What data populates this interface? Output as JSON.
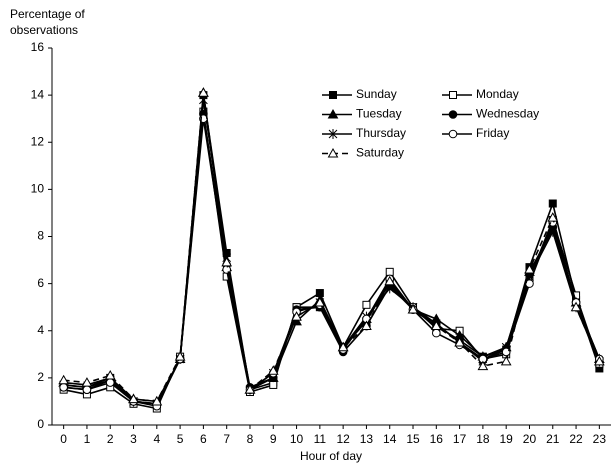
{
  "chart_data": {
    "type": "line",
    "y_label": "Percentage of observations",
    "x_label": "Hour of day",
    "x": [
      0,
      1,
      2,
      3,
      4,
      5,
      6,
      7,
      8,
      9,
      10,
      11,
      12,
      13,
      14,
      15,
      16,
      17,
      18,
      19,
      20,
      21,
      22,
      23
    ],
    "xlim": [
      -0.5,
      23.5
    ],
    "xticks": [
      0,
      1,
      2,
      3,
      4,
      5,
      6,
      7,
      8,
      9,
      10,
      11,
      12,
      13,
      14,
      15,
      16,
      17,
      18,
      19,
      20,
      21,
      22,
      23
    ],
    "ylim": [
      0,
      16
    ],
    "yticks": [
      0,
      2,
      4,
      6,
      8,
      10,
      12,
      14,
      16
    ],
    "grid": false,
    "legend": "upper-right",
    "series": [
      {
        "name": "Sunday",
        "color": "#000000",
        "marker": "square",
        "filled": true,
        "dashed": false,
        "values": [
          1.7,
          1.6,
          2.0,
          1.0,
          0.9,
          2.8,
          14.0,
          7.3,
          1.5,
          1.8,
          5.0,
          5.6,
          3.3,
          4.4,
          6.1,
          4.9,
          4.2,
          3.6,
          2.9,
          3.2,
          6.7,
          9.4,
          5.3,
          2.4
        ]
      },
      {
        "name": "Monday",
        "color": "#000000",
        "marker": "square",
        "filled": false,
        "dashed": false,
        "values": [
          1.5,
          1.3,
          1.6,
          0.9,
          0.7,
          2.9,
          13.3,
          6.3,
          1.4,
          1.7,
          5.0,
          5.0,
          3.3,
          5.1,
          6.5,
          5.0,
          4.1,
          4.0,
          2.8,
          3.0,
          6.2,
          8.7,
          5.5,
          2.6
        ]
      },
      {
        "name": "Tuesday",
        "color": "#000000",
        "marker": "triangle",
        "filled": true,
        "dashed": false,
        "values": [
          1.8,
          1.7,
          2.0,
          1.1,
          1.0,
          2.8,
          14.1,
          6.7,
          1.5,
          2.0,
          4.4,
          5.3,
          3.3,
          4.5,
          6.0,
          4.9,
          4.5,
          3.8,
          2.9,
          3.3,
          6.5,
          8.3,
          5.2,
          2.8
        ]
      },
      {
        "name": "Wednesday",
        "color": "#000000",
        "marker": "circle",
        "filled": true,
        "dashed": false,
        "values": [
          1.6,
          1.5,
          1.9,
          1.0,
          0.9,
          2.8,
          13.2,
          6.8,
          1.6,
          2.0,
          4.9,
          5.0,
          3.1,
          4.2,
          5.9,
          4.9,
          4.3,
          3.5,
          2.8,
          3.2,
          6.4,
          8.4,
          5.2,
          2.8
        ]
      },
      {
        "name": "Thursday",
        "color": "#000000",
        "marker": "star",
        "filled": false,
        "dashed": false,
        "values": [
          1.7,
          1.6,
          1.9,
          1.0,
          0.9,
          2.8,
          13.8,
          7.1,
          1.5,
          2.2,
          4.6,
          5.2,
          3.3,
          4.6,
          5.8,
          5.0,
          4.3,
          3.5,
          2.7,
          3.3,
          6.3,
          8.2,
          5.0,
          2.7
        ]
      },
      {
        "name": "Friday",
        "color": "#000000",
        "marker": "circle",
        "filled": false,
        "dashed": false,
        "values": [
          1.6,
          1.5,
          1.8,
          1.0,
          0.8,
          2.8,
          13.0,
          6.6,
          1.5,
          2.2,
          4.8,
          5.1,
          3.2,
          4.5,
          6.2,
          4.9,
          3.9,
          3.4,
          2.8,
          3.1,
          6.0,
          8.6,
          5.2,
          2.8
        ]
      },
      {
        "name": "Saturday",
        "color": "#000000",
        "marker": "triangle",
        "filled": false,
        "dashed": true,
        "values": [
          1.9,
          1.8,
          2.1,
          1.1,
          1.0,
          2.9,
          14.1,
          6.9,
          1.5,
          2.3,
          4.6,
          5.2,
          3.3,
          4.2,
          6.1,
          4.9,
          4.2,
          3.5,
          2.5,
          2.7,
          6.6,
          8.8,
          5.0,
          2.7
        ]
      }
    ]
  }
}
